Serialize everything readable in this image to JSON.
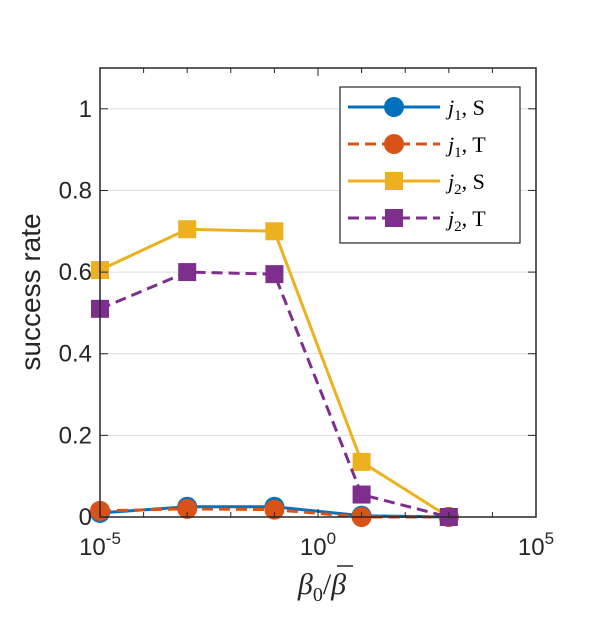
{
  "chart_data": {
    "type": "line",
    "ylabel": "success rate",
    "xlabel": {
      "base": "β",
      "sub": "0",
      "sep": "/",
      "bar": "β"
    },
    "xscale": "log",
    "xlim": [
      1e-05,
      100000
    ],
    "ylim": [
      0,
      1.1
    ],
    "xticks": [
      {
        "value": 1e-05,
        "base": "10",
        "exp": "-5"
      },
      {
        "value": 1,
        "base": "10",
        "exp": "0"
      },
      {
        "value": 100000,
        "base": "10",
        "exp": "5"
      }
    ],
    "yticks": [
      {
        "value": 0,
        "label": "0"
      },
      {
        "value": 0.2,
        "label": "0.2"
      },
      {
        "value": 0.4,
        "label": "0.4"
      },
      {
        "value": 0.6,
        "label": "0.6"
      },
      {
        "value": 0.8,
        "label": "0.8"
      },
      {
        "value": 1,
        "label": "1"
      }
    ],
    "grid": "horizontal",
    "legend_position": "top-right",
    "x": [
      1e-05,
      0.001,
      0.1,
      10,
      1000
    ],
    "series": [
      {
        "name": "j1, S",
        "var": "j",
        "sub": "1",
        "suffix": ", S",
        "color": "#0072BD",
        "dash": "solid",
        "marker": "circle",
        "values": [
          0.01,
          0.025,
          0.025,
          0.003,
          0.0
        ]
      },
      {
        "name": "j1, T",
        "var": "j",
        "sub": "1",
        "suffix": ", T",
        "color": "#D95319",
        "dash": "dashed",
        "marker": "circle",
        "values": [
          0.015,
          0.02,
          0.018,
          0.0,
          0.0
        ]
      },
      {
        "name": "j2, S",
        "var": "j",
        "sub": "2",
        "suffix": ", S",
        "color": "#EDB120",
        "dash": "solid",
        "marker": "square",
        "values": [
          0.605,
          0.705,
          0.7,
          0.135,
          0.0
        ]
      },
      {
        "name": "j2, T",
        "var": "j",
        "sub": "2",
        "suffix": ", T",
        "color": "#7E2F8E",
        "dash": "dashed",
        "marker": "square",
        "values": [
          0.51,
          0.6,
          0.595,
          0.055,
          0.0
        ]
      }
    ]
  }
}
